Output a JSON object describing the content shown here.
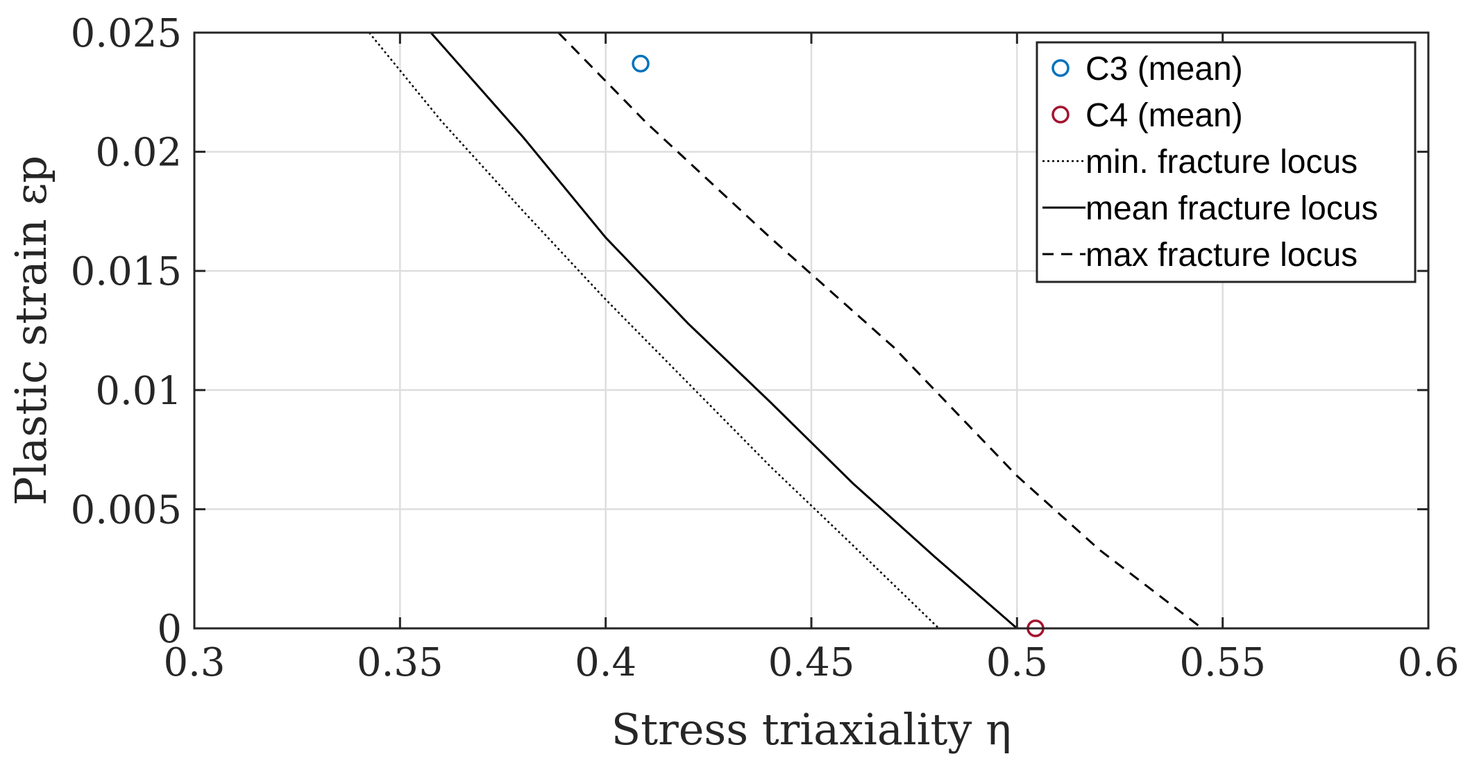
{
  "chart_data": {
    "type": "line",
    "title": "",
    "xlabel": "Stress triaxiality η",
    "ylabel": "Plastic strain εp",
    "xlim": [
      0.3,
      0.6
    ],
    "ylim": [
      0,
      0.025
    ],
    "grid": true,
    "legend_position": "top-right",
    "x_ticks": [
      0.3,
      0.35,
      0.4,
      0.45,
      0.5,
      0.55,
      0.6
    ],
    "x_tick_labels": [
      "0.3",
      "0.35",
      "0.4",
      "0.45",
      "0.5",
      "0.55",
      "0.6"
    ],
    "y_ticks": [
      0,
      0.005,
      0.01,
      0.015,
      0.02,
      0.025
    ],
    "y_tick_labels": [
      "0",
      "0.005",
      "0.01",
      "0.015",
      "0.02",
      "0.025"
    ],
    "series": [
      {
        "name": "C3 (mean)",
        "kind": "marker",
        "color": "#0072BD",
        "x": [
          0.4085
        ],
        "y": [
          0.0237
        ]
      },
      {
        "name": "C4 (mean)",
        "kind": "marker",
        "color": "#A2142F",
        "x": [
          0.5045
        ],
        "y": [
          0.0
        ]
      },
      {
        "name": "min. fracture locus",
        "kind": "line",
        "style": "dotted",
        "color": "#000000",
        "x": [
          0.3425,
          0.36,
          0.38,
          0.4,
          0.42,
          0.44,
          0.46,
          0.481
        ],
        "y": [
          0.025,
          0.0213,
          0.0175,
          0.0138,
          0.0103,
          0.0068,
          0.0035,
          0.0
        ]
      },
      {
        "name": "mean fracture locus",
        "kind": "line",
        "style": "solid",
        "color": "#000000",
        "x": [
          0.3575,
          0.38,
          0.4,
          0.42,
          0.44,
          0.46,
          0.48,
          0.5
        ],
        "y": [
          0.025,
          0.0206,
          0.0164,
          0.0128,
          0.0095,
          0.0061,
          0.003,
          0.0
        ]
      },
      {
        "name": "max fracture locus",
        "kind": "line",
        "style": "dashed",
        "color": "#000000",
        "x": [
          0.3885,
          0.41,
          0.44,
          0.47,
          0.5,
          0.52,
          0.545
        ],
        "y": [
          0.025,
          0.0212,
          0.0164,
          0.0118,
          0.0064,
          0.0033,
          0.0
        ]
      }
    ]
  }
}
